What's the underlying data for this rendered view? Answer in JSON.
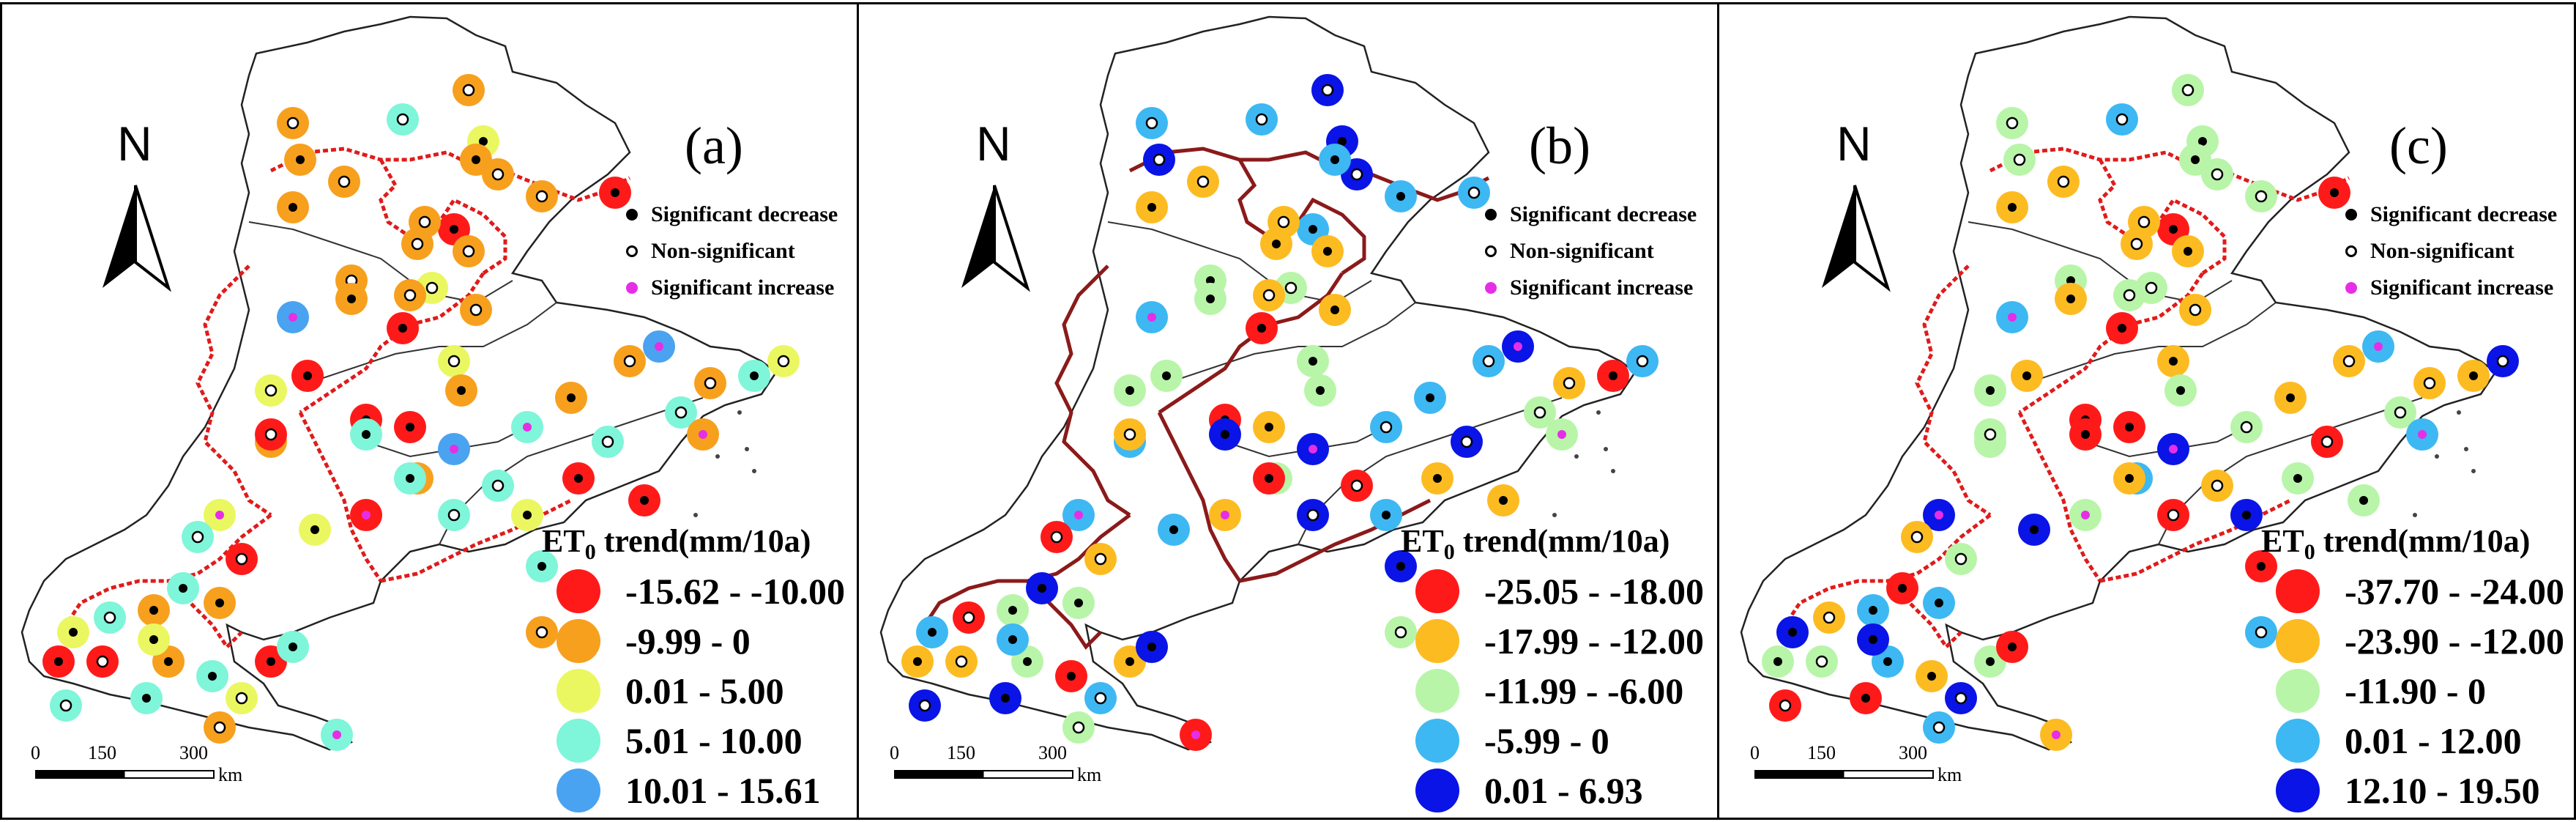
{
  "panels": [
    {
      "label": "(a)",
      "legend_title": "trend(mm/10a)",
      "legend_title_prefix": "ET",
      "legend_title_sub": "0",
      "classes": [
        {
          "range": "-15.62 - -10.00",
          "color": "#ff1a1a"
        },
        {
          "range": "-9.99 - 0",
          "color": "#f7a01e"
        },
        {
          "range": "0.01 - 5.00",
          "color": "#eaf760"
        },
        {
          "range": "5.01 - 10.00",
          "color": "#7ff5d9"
        },
        {
          "range": "10.01 - 15.61",
          "color": "#4aa3f0"
        }
      ]
    },
    {
      "label": "(b)",
      "legend_title": "trend(mm/10a)",
      "legend_title_prefix": "ET",
      "legend_title_sub": "0",
      "classes": [
        {
          "range": "-25.05 - -18.00",
          "color": "#ff1a1a"
        },
        {
          "range": "-17.99 - -12.00",
          "color": "#fdbb22"
        },
        {
          "range": "-11.99 - -6.00",
          "color": "#b8f5a8"
        },
        {
          "range": "-5.99 - 0",
          "color": "#3db8f2"
        },
        {
          "range": "0.01 - 6.93",
          "color": "#0a14e6"
        }
      ]
    },
    {
      "label": "(c)",
      "legend_title": "trend(mm/10a)",
      "legend_title_prefix": "ET",
      "legend_title_sub": "0",
      "classes": [
        {
          "range": "-37.70 - -24.00",
          "color": "#ff1a1a"
        },
        {
          "range": "-23.90 - -12.00",
          "color": "#fdbb22"
        },
        {
          "range": "-11.90 - 0",
          "color": "#b8f5a8"
        },
        {
          "range": "0.01 - 12.00",
          "color": "#3db8f2"
        },
        {
          "range": "12.10 - 19.50",
          "color": "#0a14e6"
        }
      ]
    }
  ],
  "significance": {
    "decrease": "Significant decrease",
    "nonsig": "Non-significant",
    "increase": "Significant increase",
    "colors": {
      "decrease": "#000000",
      "nonsig": "#ffffff",
      "increase": "#e62ee6"
    }
  },
  "north": "N",
  "scale": {
    "ticks": [
      "0",
      "150",
      "300"
    ],
    "unit": "km"
  },
  "stations": [
    {
      "a": 1,
      "b": 4,
      "c": 2,
      "sa": "o",
      "sb": "o",
      "sc": "o"
    },
    {
      "a": 3,
      "b": 3,
      "c": 3,
      "sa": "o",
      "sb": "o",
      "sc": "o"
    },
    {
      "a": 1,
      "b": 3,
      "c": 2,
      "sa": "o",
      "sb": "o",
      "sc": "o"
    },
    {
      "a": 1,
      "b": 4,
      "c": 2,
      "sa": "d",
      "sb": "o",
      "sc": "o"
    },
    {
      "a": 2,
      "b": 4,
      "c": 2,
      "sa": "d",
      "sb": "d",
      "sc": "d"
    },
    {
      "a": 1,
      "b": 4,
      "c": 2,
      "sa": "o",
      "sb": "o",
      "sc": "o"
    },
    {
      "a": 1,
      "b": 3,
      "c": 2,
      "sa": "d",
      "sb": "d",
      "sc": "d"
    },
    {
      "a": 0,
      "b": 3,
      "c": 0,
      "sa": "d",
      "sb": "o",
      "sc": "d"
    },
    {
      "a": 1,
      "b": 3,
      "c": 2,
      "sa": "o",
      "sb": "d",
      "sc": "o"
    },
    {
      "a": 1,
      "b": 1,
      "c": 1,
      "sa": "o",
      "sb": "o",
      "sc": "o"
    },
    {
      "a": 1,
      "b": 1,
      "c": 1,
      "sa": "d",
      "sb": "d",
      "sc": "d"
    },
    {
      "a": 0,
      "b": 3,
      "c": 0,
      "sa": "d",
      "sb": "d",
      "sc": "d"
    },
    {
      "a": 1,
      "b": 1,
      "c": 1,
      "sa": "o",
      "sb": "o",
      "sc": "o"
    },
    {
      "a": 1,
      "b": 1,
      "c": 1,
      "sa": "o",
      "sb": "d",
      "sc": "o"
    },
    {
      "a": 1,
      "b": 1,
      "c": 1,
      "sa": "o",
      "sb": "d",
      "sc": "d"
    },
    {
      "a": 1,
      "b": 2,
      "c": 2,
      "sa": "o",
      "sb": "d",
      "sc": "d"
    },
    {
      "a": 2,
      "b": 2,
      "c": 2,
      "sa": "o",
      "sb": "o",
      "sc": "o"
    },
    {
      "a": 4,
      "b": 3,
      "c": 3,
      "sa": "i",
      "sb": "i",
      "sc": "i"
    },
    {
      "a": 1,
      "b": 2,
      "c": 1,
      "sa": "d",
      "sb": "d",
      "sc": "d"
    },
    {
      "a": 1,
      "b": 1,
      "c": 2,
      "sa": "o",
      "sb": "o",
      "sc": "o"
    },
    {
      "a": 1,
      "b": 1,
      "c": 1,
      "sa": "o",
      "sb": "d",
      "sc": "o"
    },
    {
      "a": 0,
      "b": 0,
      "c": 0,
      "sa": "d",
      "sb": "d",
      "sc": "d"
    },
    {
      "a": 2,
      "b": 2,
      "c": 1,
      "sa": "o",
      "sb": "d",
      "sc": "d"
    },
    {
      "a": 1,
      "b": 2,
      "c": 2,
      "sa": "d",
      "sb": "d",
      "sc": "d"
    },
    {
      "a": 0,
      "b": 2,
      "c": 1,
      "sa": "d",
      "sb": "d",
      "sc": "d"
    },
    {
      "a": 0,
      "b": 0,
      "c": 0,
      "sa": "d",
      "sb": "d",
      "sc": "d"
    },
    {
      "a": 2,
      "b": 2,
      "c": 2,
      "sa": "o",
      "sb": "d",
      "sc": "d"
    },
    {
      "a": 3,
      "b": 3,
      "c": 2,
      "sa": "i",
      "sb": "o",
      "sc": "o"
    },
    {
      "a": 1,
      "b": 3,
      "c": 2,
      "sa": "o",
      "sb": "d",
      "sc": "d"
    },
    {
      "a": 4,
      "b": 4,
      "c": 4,
      "sa": "i",
      "sb": "i",
      "sc": "i"
    },
    {
      "a": 4,
      "b": 4,
      "c": 3,
      "sa": "i",
      "sb": "i",
      "sc": "i"
    },
    {
      "a": 1,
      "b": 3,
      "c": 1,
      "sa": "o",
      "sb": "o",
      "sc": "o"
    },
    {
      "a": 0,
      "b": 1,
      "c": 0,
      "sa": "d",
      "sb": "d",
      "sc": "d"
    },
    {
      "a": 1,
      "b": 3,
      "c": 1,
      "sa": "d",
      "sb": "d",
      "sc": "d"
    },
    {
      "a": 3,
      "b": 2,
      "c": 2,
      "sa": "o",
      "sb": "o",
      "sc": "o"
    },
    {
      "a": 1,
      "b": 1,
      "c": 1,
      "sa": "o",
      "sb": "o",
      "sc": "o"
    }
  ]
}
